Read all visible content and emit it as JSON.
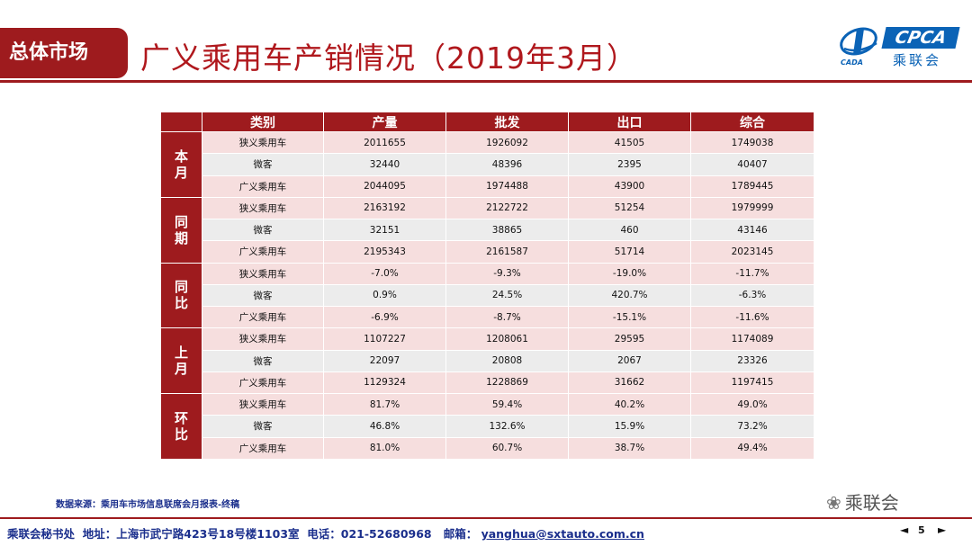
{
  "section_tab": "总体市场",
  "page_title": "广义乘用车产销情况（2019年3月）",
  "logo": {
    "cpca_text": "CPCA",
    "cpca_cn": "乘联会",
    "brand_color": "#0b63b6"
  },
  "accent_color": "#9e1b1e",
  "table": {
    "headers": [
      "类别",
      "产量",
      "批发",
      "出口",
      "综合"
    ],
    "groups": [
      {
        "label": "本月",
        "rows": [
          [
            "狭义乘用车",
            "2011655",
            "1926092",
            "41505",
            "1749038"
          ],
          [
            "微客",
            "32440",
            "48396",
            "2395",
            "40407"
          ],
          [
            "广义乘用车",
            "2044095",
            "1974488",
            "43900",
            "1789445"
          ]
        ]
      },
      {
        "label": "同期",
        "rows": [
          [
            "狭义乘用车",
            "2163192",
            "2122722",
            "51254",
            "1979999"
          ],
          [
            "微客",
            "32151",
            "38865",
            "460",
            "43146"
          ],
          [
            "广义乘用车",
            "2195343",
            "2161587",
            "51714",
            "2023145"
          ]
        ]
      },
      {
        "label": "同比",
        "rows": [
          [
            "狭义乘用车",
            "-7.0%",
            "-9.3%",
            "-19.0%",
            "-11.7%"
          ],
          [
            "微客",
            "0.9%",
            "24.5%",
            "420.7%",
            "-6.3%"
          ],
          [
            "广义乘用车",
            "-6.9%",
            "-8.7%",
            "-15.1%",
            "-11.6%"
          ]
        ]
      },
      {
        "label": "上月",
        "rows": [
          [
            "狭义乘用车",
            "1107227",
            "1208061",
            "29595",
            "1174089"
          ],
          [
            "微客",
            "22097",
            "20808",
            "2067",
            "23326"
          ],
          [
            "广义乘用车",
            "1129324",
            "1228869",
            "31662",
            "1197415"
          ]
        ]
      },
      {
        "label": "环比",
        "rows": [
          [
            "狭义乘用车",
            "81.7%",
            "59.4%",
            "40.2%",
            "49.0%"
          ],
          [
            "微客",
            "46.8%",
            "132.6%",
            "15.9%",
            "73.2%"
          ],
          [
            "广义乘用车",
            "81.0%",
            "60.7%",
            "38.7%",
            "49.4%"
          ]
        ]
      }
    ]
  },
  "source_note": "数据来源：乘用车市场信息联席会月报表-终稿",
  "watermark": "乘联会",
  "footer": {
    "org": "乘联会秘书处",
    "address_label": "地址：",
    "address": "上海市武宁路423号18号楼1103室",
    "phone_label": "电话：",
    "phone": "021-52680968",
    "email_label": "邮箱：",
    "email": "yanghua@sxtauto.com.cn"
  },
  "pager": {
    "prev_icon": "◄",
    "page": "5",
    "next_icon": "►"
  }
}
